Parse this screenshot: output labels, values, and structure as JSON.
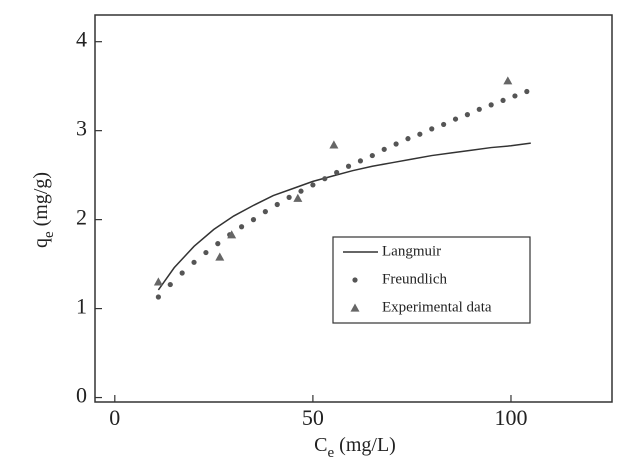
{
  "chart_data": {
    "type": "scatter",
    "x_label": "Ce (mg/L)",
    "y_label": "qe (mg/g)",
    "xlim": [
      -5,
      125.5
    ],
    "ylim": [
      -0.05,
      4.3
    ],
    "xticks": [
      0,
      50,
      100
    ],
    "yticks": [
      0,
      1,
      2,
      3,
      4
    ],
    "legend": "center right",
    "series": [
      {
        "name": "Langmuir",
        "style": "line",
        "color": "#333333",
        "x": [
          11,
          15,
          20,
          25,
          30,
          35,
          40,
          45,
          50,
          55,
          60,
          65,
          70,
          75,
          80,
          85,
          90,
          95,
          100,
          105
        ],
        "values": [
          1.21,
          1.46,
          1.7,
          1.89,
          2.04,
          2.16,
          2.27,
          2.35,
          2.43,
          2.49,
          2.55,
          2.6,
          2.64,
          2.68,
          2.72,
          2.75,
          2.78,
          2.81,
          2.83,
          2.86
        ]
      },
      {
        "name": "Freundlich",
        "style": "dots",
        "color": "#555555",
        "x": [
          11,
          14,
          17,
          20,
          23,
          26,
          29,
          32,
          35,
          38,
          41,
          44,
          47,
          50,
          53,
          56,
          59,
          62,
          65,
          68,
          71,
          74,
          77,
          80,
          83,
          86,
          89,
          92,
          95,
          98,
          101,
          104
        ],
        "values": [
          1.13,
          1.27,
          1.4,
          1.52,
          1.63,
          1.73,
          1.83,
          1.92,
          2.0,
          2.09,
          2.17,
          2.25,
          2.32,
          2.39,
          2.46,
          2.53,
          2.6,
          2.66,
          2.72,
          2.79,
          2.85,
          2.91,
          2.96,
          3.02,
          3.07,
          3.13,
          3.18,
          3.24,
          3.29,
          3.34,
          3.39,
          3.44
        ]
      },
      {
        "name": "Experimental data",
        "style": "triangle",
        "color": "#666666",
        "x": [
          11,
          26.5,
          29.5,
          46.2,
          55.3,
          99.2
        ],
        "values": [
          1.3,
          1.58,
          1.83,
          2.24,
          2.84,
          3.56
        ]
      }
    ]
  }
}
